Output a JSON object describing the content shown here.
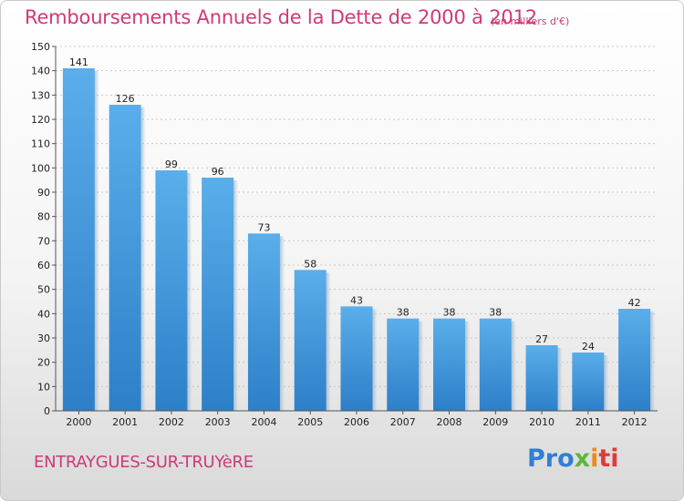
{
  "header": {
    "title": "Remboursements Annuels de la Dette de 2000 à 2012",
    "unit": "(en milliers d'€)"
  },
  "footer": {
    "town": "ENTRAYGUES-SUR-TRUYèRE",
    "logo": {
      "part1": "Pro",
      "part2": "x",
      "part3": "i",
      "part4": "ti"
    }
  },
  "colors": {
    "accent": "#cf3a78",
    "bar": "#3b8fd9"
  },
  "chart_data": {
    "type": "bar",
    "title": "Remboursements Annuels de la Dette de 2000 à 2012",
    "xlabel": "",
    "ylabel": "",
    "categories": [
      "2000",
      "2001",
      "2002",
      "2003",
      "2004",
      "2005",
      "2006",
      "2007",
      "2008",
      "2009",
      "2010",
      "2011",
      "2012"
    ],
    "values": [
      141,
      126,
      99,
      96,
      73,
      58,
      43,
      38,
      38,
      38,
      27,
      24,
      42
    ],
    "ylim": [
      0,
      150
    ],
    "yticks": [
      0,
      10,
      20,
      30,
      40,
      50,
      60,
      70,
      80,
      90,
      100,
      110,
      120,
      130,
      140,
      150
    ],
    "grid": true
  }
}
